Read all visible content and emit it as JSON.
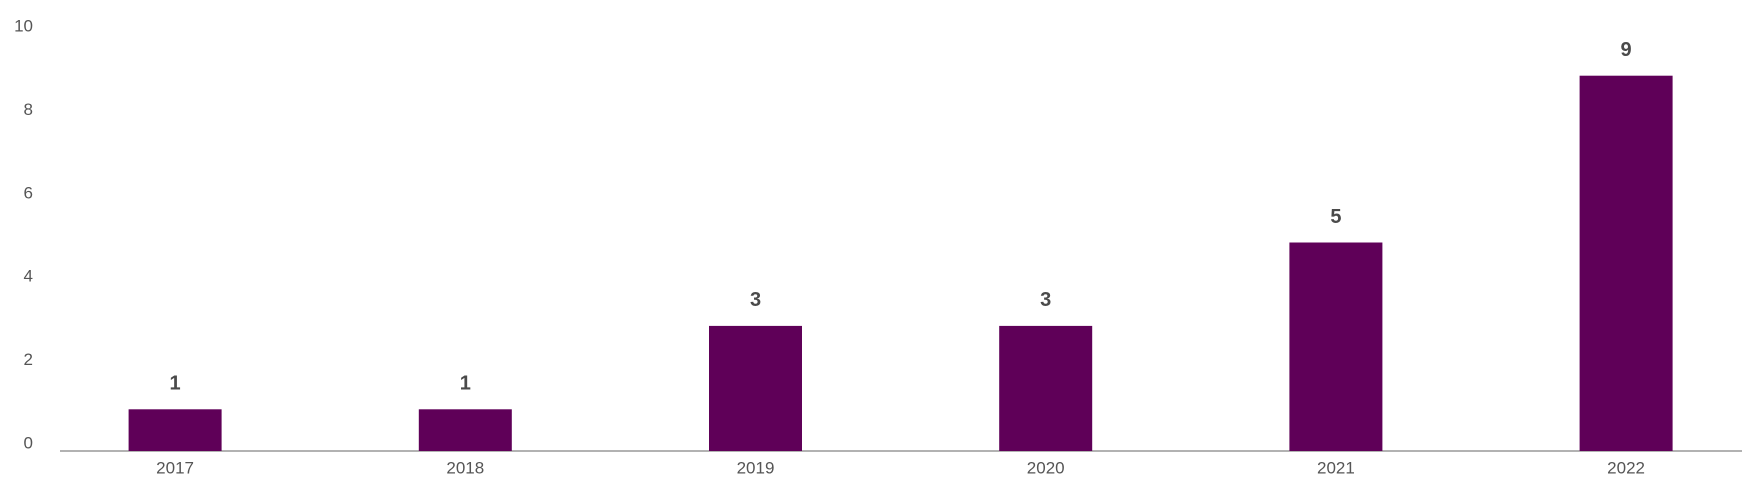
{
  "chart_data": {
    "type": "bar",
    "categories": [
      "2017",
      "2018",
      "2019",
      "2020",
      "2021",
      "2022"
    ],
    "values": [
      1,
      1,
      3,
      3,
      5,
      9
    ],
    "color": "#5f0058",
    "ylim": [
      0,
      10
    ],
    "yticks": [
      0,
      2,
      4,
      6,
      8,
      10
    ],
    "grid": false,
    "value_labels_shown": true
  }
}
